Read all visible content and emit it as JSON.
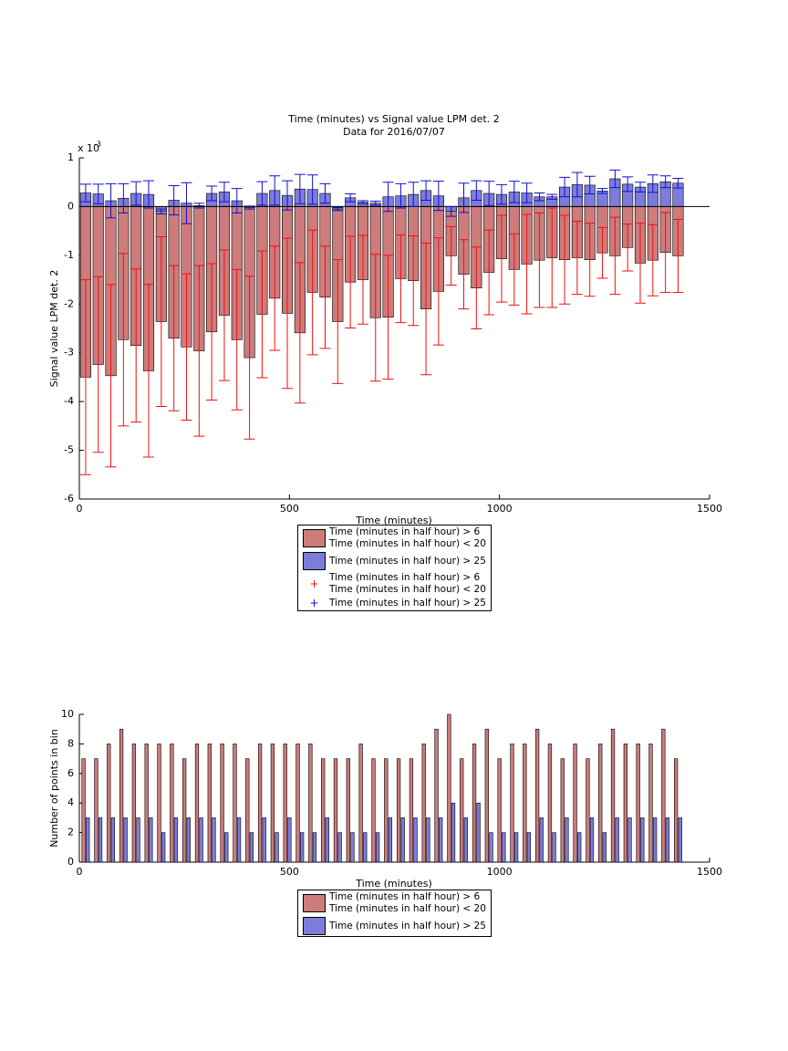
{
  "chart_data": [
    {
      "type": "bar",
      "title": "Time (minutes) vs Signal value LPM det. 2",
      "subtitle": "Data for 2016/07/07",
      "x_label": "Time (minutes)",
      "y_label": "Signal value LPM det. 2",
      "y_multiplier": "x 10",
      "y_multiplier_exponent": "-3",
      "x": [
        15,
        45,
        75,
        105,
        135,
        165,
        195,
        225,
        255,
        285,
        315,
        345,
        375,
        405,
        435,
        465,
        495,
        525,
        555,
        585,
        615,
        645,
        675,
        705,
        735,
        765,
        795,
        825,
        855,
        885,
        915,
        945,
        975,
        1005,
        1035,
        1065,
        1095,
        1125,
        1155,
        1185,
        1215,
        1245,
        1275,
        1305,
        1335,
        1365,
        1395,
        1425
      ],
      "xlim": [
        0,
        1500
      ],
      "xticks": [
        0,
        500,
        1000,
        1500
      ],
      "ylim": [
        -6,
        1
      ],
      "yticks": [
        1,
        0,
        -1,
        -2,
        -3,
        -4,
        -5,
        -6
      ],
      "zero_line": true,
      "series": [
        {
          "name": "Time (minutes in half hour) > 6\nTime (minutes in half hour) < 20",
          "color": "#cd7b7b",
          "error_color": "#ee1111",
          "values": [
            -3.5,
            -3.24,
            -3.47,
            -2.73,
            -2.85,
            -3.37,
            -2.36,
            -2.7,
            -2.88,
            -2.96,
            -2.57,
            -2.23,
            -2.73,
            -3.1,
            -2.21,
            -1.88,
            -2.19,
            -2.59,
            -1.76,
            -1.86,
            -2.36,
            -1.55,
            -1.5,
            -2.28,
            -2.27,
            -1.48,
            -1.52,
            -2.1,
            -1.74,
            -1.01,
            -1.39,
            -1.67,
            -1.35,
            -1.07,
            -1.29,
            -1.18,
            -1.1,
            -1.05,
            -1.09,
            -1.05,
            -1.09,
            -0.95,
            -1.01,
            -0.84,
            -1.16,
            -1.1,
            -0.94,
            -1.01
          ],
          "errors": [
            2.0,
            1.8,
            1.87,
            1.77,
            1.57,
            1.77,
            1.74,
            1.49,
            1.5,
            1.75,
            1.4,
            1.34,
            1.44,
            1.67,
            1.3,
            1.07,
            1.54,
            1.44,
            1.28,
            1.05,
            1.27,
            0.94,
            0.91,
            1.3,
            1.27,
            0.9,
            0.92,
            1.35,
            1.1,
            0.6,
            0.71,
            0.84,
            0.87,
            0.89,
            0.73,
            1.02,
            0.97,
            1.02,
            0.91,
            0.75,
            0.75,
            0.52,
            0.79,
            0.48,
            0.82,
            0.73,
            0.82,
            0.75
          ]
        },
        {
          "name": "Time (minutes in half hour) > 25",
          "color": "#7c7cdc",
          "error_color": "#1111cc",
          "values": [
            0.28,
            0.26,
            0.12,
            0.17,
            0.27,
            0.25,
            -0.1,
            0.13,
            0.07,
            0.02,
            0.27,
            0.3,
            0.12,
            -0.02,
            0.27,
            0.33,
            0.23,
            0.36,
            0.35,
            0.27,
            -0.05,
            0.18,
            0.09,
            0.07,
            0.2,
            0.22,
            0.25,
            0.33,
            0.22,
            -0.1,
            0.18,
            0.33,
            0.27,
            0.25,
            0.3,
            0.28,
            0.2,
            0.2,
            0.4,
            0.45,
            0.44,
            0.32,
            0.57,
            0.46,
            0.4,
            0.47,
            0.51,
            0.48
          ],
          "errors": [
            0.18,
            0.2,
            0.35,
            0.3,
            0.24,
            0.28,
            0.05,
            0.3,
            0.42,
            0.05,
            0.15,
            0.2,
            0.25,
            0.03,
            0.24,
            0.3,
            0.3,
            0.3,
            0.3,
            0.2,
            0.03,
            0.08,
            0.03,
            0.04,
            0.3,
            0.25,
            0.25,
            0.2,
            0.3,
            0.1,
            0.3,
            0.2,
            0.25,
            0.2,
            0.22,
            0.2,
            0.08,
            0.05,
            0.2,
            0.25,
            0.18,
            0.05,
            0.18,
            0.15,
            0.1,
            0.18,
            0.12,
            0.1
          ]
        }
      ]
    },
    {
      "type": "grouped_bar",
      "x_label": "Time (minutes)",
      "y_label": "Number of points in bin",
      "x": [
        15,
        45,
        75,
        105,
        135,
        165,
        195,
        225,
        255,
        285,
        315,
        345,
        375,
        405,
        435,
        465,
        495,
        525,
        555,
        585,
        615,
        645,
        675,
        705,
        735,
        765,
        795,
        825,
        855,
        885,
        915,
        945,
        975,
        1005,
        1035,
        1065,
        1095,
        1125,
        1155,
        1185,
        1215,
        1245,
        1275,
        1305,
        1335,
        1365,
        1395,
        1425
      ],
      "xlim": [
        0,
        1500
      ],
      "xticks": [
        0,
        500,
        1000,
        1500
      ],
      "ylim": [
        0,
        10
      ],
      "yticks": [
        0,
        2,
        4,
        6,
        8,
        10
      ],
      "series": [
        {
          "name": "Time (minutes in half hour) > 6\nTime (minutes in half hour) < 20",
          "color": "#cd7b7b",
          "values": [
            7,
            7,
            8,
            9,
            8,
            8,
            8,
            8,
            7,
            8,
            8,
            8,
            8,
            7,
            8,
            8,
            8,
            8,
            8,
            7,
            7,
            7,
            8,
            7,
            7,
            7,
            7,
            8,
            9,
            10,
            7,
            8,
            9,
            7,
            8,
            8,
            9,
            8,
            7,
            8,
            7,
            8,
            9,
            8,
            8,
            8,
            9,
            7
          ]
        },
        {
          "name": "Time (minutes in half hour) > 25",
          "color": "#7c7cdc",
          "values": [
            3,
            3,
            3,
            3,
            3,
            3,
            2,
            3,
            3,
            3,
            3,
            2,
            3,
            2,
            3,
            2,
            3,
            2,
            2,
            3,
            2,
            2,
            2,
            2,
            3,
            3,
            3,
            3,
            3,
            4,
            3,
            4,
            2,
            2,
            2,
            2,
            3,
            2,
            3,
            2,
            3,
            2,
            3,
            3,
            3,
            3,
            3,
            3
          ]
        }
      ]
    }
  ]
}
